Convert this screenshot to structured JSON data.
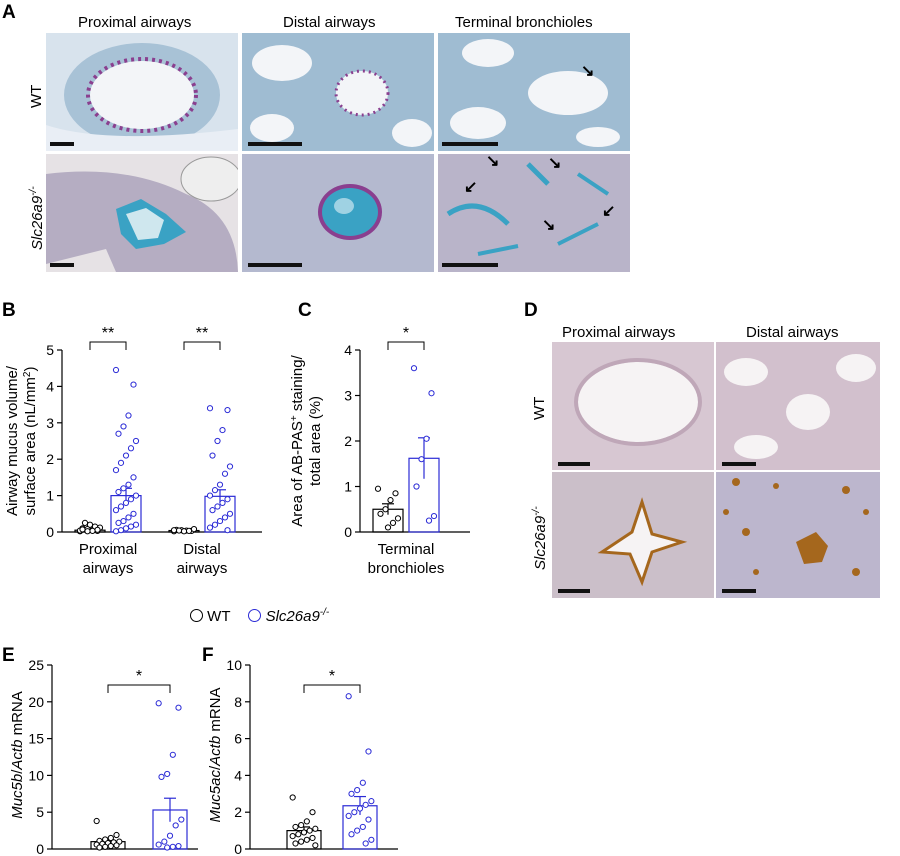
{
  "panel_letters": {
    "a": "A",
    "b": "B",
    "c": "C",
    "d": "D",
    "e": "E",
    "f": "F"
  },
  "panel_a": {
    "columns": [
      "Proximal airways",
      "Distal airways",
      "Terminal bronchioles"
    ],
    "rows": {
      "wt": "WT",
      "ko_gene": "Slc26a9",
      "ko_sup": "-/-"
    },
    "colors": {
      "bg": "#e9eef5",
      "tissue": "#9bb8cf",
      "purple": "#8a3f8f",
      "blue": "#3aa2c4"
    }
  },
  "panel_d": {
    "columns": [
      "Proximal airways",
      "Distal airways"
    ],
    "rows": {
      "wt": "WT",
      "ko_gene": "Slc26a9",
      "ko_sup": "-/-"
    },
    "colors": {
      "bg": "#f3eef0",
      "tissue": "#c9b6c4",
      "brown": "#a5671d"
    }
  },
  "legend": {
    "wt": "WT",
    "ko_gene": "Slc26a9",
    "ko_sup": "-/-",
    "wt_color": "#000000",
    "ko_color": "#2b2bd6"
  },
  "chart_data": [
    {
      "id": "B",
      "type": "bar",
      "ylabel_line1": "Airway mucus volume/",
      "ylabel_line2": "surface area (nL/mm",
      "ylabel_sup": "2",
      "ylabel_end": ")",
      "ylim": [
        0,
        5
      ],
      "yticks": [
        0,
        1,
        2,
        3,
        4,
        5
      ],
      "categories": [
        [
          "Proximal",
          "airways"
        ],
        [
          "Distal",
          "airways"
        ]
      ],
      "series": [
        {
          "group": "WT",
          "means": [
            0.05,
            0.04
          ],
          "sem": [
            0.02,
            0.02
          ],
          "points": [
            [
              0.02,
              0.03,
              0.05,
              0.08,
              0.1,
              0.12,
              0.15,
              0.2,
              0.25,
              0.04,
              0.06,
              0.03,
              0.02,
              0.07
            ],
            [
              0.02,
              0.03,
              0.04,
              0.05,
              0.06,
              0.08,
              0.03,
              0.02,
              0.04,
              0.05
            ]
          ]
        },
        {
          "group": "Slc26a9-/-",
          "means": [
            1.0,
            0.98
          ],
          "sem": [
            0.2,
            0.18
          ],
          "points": [
            [
              4.45,
              4.05,
              3.2,
              2.9,
              2.7,
              2.5,
              2.3,
              2.1,
              1.9,
              1.7,
              1.5,
              1.3,
              1.2,
              1.1,
              1.0,
              0.9,
              0.8,
              0.7,
              0.6,
              0.5,
              0.4,
              0.3,
              0.25,
              0.2,
              0.15,
              0.1,
              0.05,
              0.02
            ],
            [
              3.4,
              3.35,
              2.8,
              2.5,
              2.1,
              1.8,
              1.6,
              1.3,
              1.15,
              1.0,
              0.9,
              0.8,
              0.7,
              0.6,
              0.5,
              0.4,
              0.3,
              0.2,
              0.12,
              0.05
            ]
          ]
        }
      ],
      "sig": [
        "**",
        "**"
      ]
    },
    {
      "id": "C",
      "type": "bar",
      "ylabel_line1": "Area of AB-PAS",
      "ylabel_sup1": "+",
      "ylabel_line1b": " staining/",
      "ylabel_line2": "total area (%)",
      "ylim": [
        0,
        4
      ],
      "yticks": [
        0,
        1,
        2,
        3,
        4
      ],
      "categories": [
        [
          "Terminal",
          "bronchioles"
        ]
      ],
      "series": [
        {
          "group": "WT",
          "means": [
            0.5
          ],
          "sem": [
            0.12
          ],
          "points": [
            [
              0.95,
              0.85,
              0.7,
              0.5,
              0.4,
              0.3,
              0.2,
              0.1
            ]
          ]
        },
        {
          "group": "Slc26a9-/-",
          "means": [
            1.62
          ],
          "sem": [
            0.45
          ],
          "points": [
            [
              3.6,
              3.05,
              2.05,
              1.6,
              1.0,
              0.35,
              0.25
            ]
          ]
        }
      ],
      "sig": [
        "*"
      ]
    },
    {
      "id": "E",
      "type": "bar",
      "ylabel_gene1": "Muc5b",
      "ylabel_gene2": "Actb",
      "ylabel_end": " mRNA",
      "ylim": [
        0,
        25
      ],
      "yticks": [
        0,
        5,
        10,
        15,
        20,
        25
      ],
      "categories": [],
      "series": [
        {
          "group": "WT",
          "means": [
            1.0
          ],
          "sem": [
            0.25
          ],
          "points": [
            [
              3.8,
              1.9,
              1.5,
              1.3,
              1.1,
              1.0,
              0.9,
              0.8,
              0.7,
              0.6,
              0.5,
              0.4,
              0.3,
              0.2
            ]
          ]
        },
        {
          "group": "Slc26a9-/-",
          "means": [
            5.3
          ],
          "sem": [
            1.6
          ],
          "points": [
            [
              19.8,
              19.2,
              12.8,
              10.2,
              9.8,
              4.0,
              3.2,
              1.8,
              1.0,
              0.6,
              0.4,
              0.3,
              0.2
            ]
          ]
        }
      ],
      "sig": [
        "*"
      ]
    },
    {
      "id": "F",
      "type": "bar",
      "ylabel_gene1": "Muc5ac",
      "ylabel_gene2": "Actb",
      "ylabel_end": " mRNA",
      "ylim": [
        0,
        10
      ],
      "yticks": [
        0,
        2,
        4,
        6,
        8,
        10
      ],
      "categories": [],
      "series": [
        {
          "group": "WT",
          "means": [
            1.0
          ],
          "sem": [
            0.2
          ],
          "points": [
            [
              2.8,
              2.0,
              1.5,
              1.3,
              1.2,
              1.1,
              1.0,
              0.9,
              0.8,
              0.7,
              0.6,
              0.5,
              0.4,
              0.3,
              0.2
            ]
          ]
        },
        {
          "group": "Slc26a9-/-",
          "means": [
            2.35
          ],
          "sem": [
            0.5
          ],
          "points": [
            [
              8.3,
              5.3,
              3.6,
              3.2,
              3.0,
              2.6,
              2.4,
              2.2,
              2.0,
              1.8,
              1.6,
              1.2,
              1.0,
              0.8,
              0.5,
              0.3
            ]
          ]
        }
      ],
      "sig": [
        "*"
      ]
    }
  ]
}
